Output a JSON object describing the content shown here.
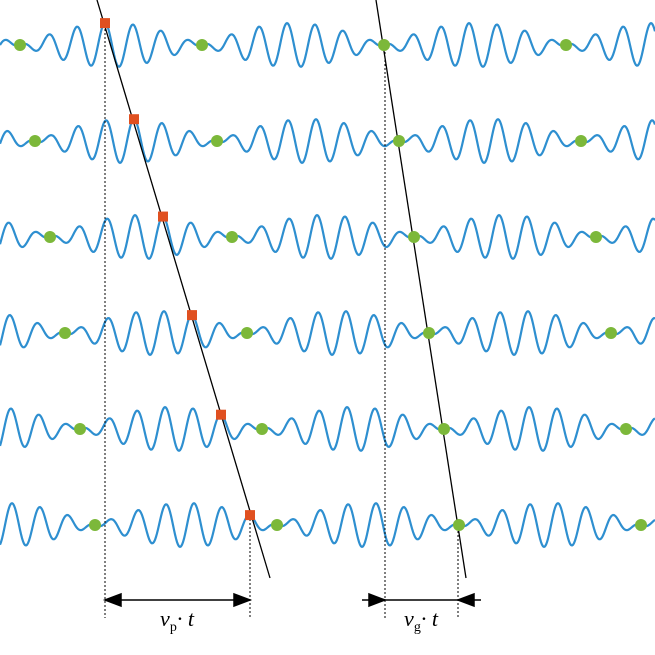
{
  "labels": [
    {
      "symbol": "v",
      "subscript": "p",
      "suffix": "· t"
    },
    {
      "symbol": "v",
      "subscript": "g",
      "suffix": "· t"
    }
  ]
}
